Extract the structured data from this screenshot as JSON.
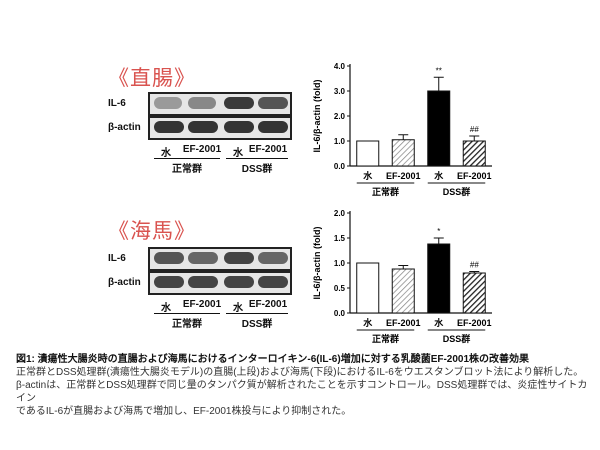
{
  "panels": [
    {
      "label": "《直腸》",
      "blot": {
        "rows": [
          "IL-6",
          "β-actin"
        ],
        "lanes": [
          "水",
          "EF-2001",
          "水",
          "EF-2001"
        ],
        "groups": [
          "正常群",
          "DSS群"
        ]
      }
    },
    {
      "label": "《海馬》",
      "blot": {
        "rows": [
          "IL-6",
          "β-actin"
        ],
        "lanes": [
          "水",
          "EF-2001",
          "水",
          "EF-2001"
        ],
        "groups": [
          "正常群",
          "DSS群"
        ]
      }
    }
  ],
  "caption": {
    "title": "図1: 潰瘍性大腸炎時の直腸および海馬におけるインターロイキン-6(IL-6)増加に対する乳酸菌EF-2001株の改善効果",
    "lines": [
      "正常群とDSS処理群(潰瘍性大腸炎モデル)の直腸(上段)および海馬(下段)におけるIL-6をウエスタンブロット法により解析した。",
      "β-actinは、正常群とDSS処理群で同じ量のタンパク質が解析されたことを示すコントロール。DSS処理群では、炎症性サイトカイン",
      "であるIL-6が直腸および海馬で増加し、EF-2001株投与により抑制された。"
    ]
  },
  "chart_data": [
    {
      "type": "bar",
      "ylabel": "IL-6/β-actin (fold)",
      "ylim": [
        0,
        4.0
      ],
      "yticks": [
        "0.0",
        "1.0",
        "2.0",
        "3.0",
        "4.0"
      ],
      "categories": [
        "水",
        "EF-2001",
        "水",
        "EF-2001"
      ],
      "groups": [
        {
          "label": "正常群",
          "span": [
            0,
            1
          ]
        },
        {
          "label": "DSS群",
          "span": [
            2,
            3
          ]
        }
      ],
      "values": [
        1.0,
        1.05,
        3.0,
        1.0
      ],
      "errors": [
        0.0,
        0.2,
        0.55,
        0.2
      ],
      "annotations": [
        "",
        "",
        "**",
        "##"
      ],
      "fills": [
        "white",
        "hatch",
        "black",
        "dark-hatch"
      ]
    },
    {
      "type": "bar",
      "ylabel": "IL-6/β-actin (fold)",
      "ylim": [
        0,
        2.0
      ],
      "yticks": [
        "0.0",
        "0.5",
        "1.0",
        "1.5",
        "2.0"
      ],
      "categories": [
        "水",
        "EF-2001",
        "水",
        "EF-2001"
      ],
      "groups": [
        {
          "label": "正常群",
          "span": [
            0,
            1
          ]
        },
        {
          "label": "DSS群",
          "span": [
            2,
            3
          ]
        }
      ],
      "values": [
        1.0,
        0.88,
        1.38,
        0.8
      ],
      "errors": [
        0.0,
        0.07,
        0.12,
        0.03
      ],
      "annotations": [
        "",
        "",
        "*",
        "##"
      ],
      "fills": [
        "white",
        "hatch",
        "black",
        "dark-hatch"
      ]
    }
  ]
}
